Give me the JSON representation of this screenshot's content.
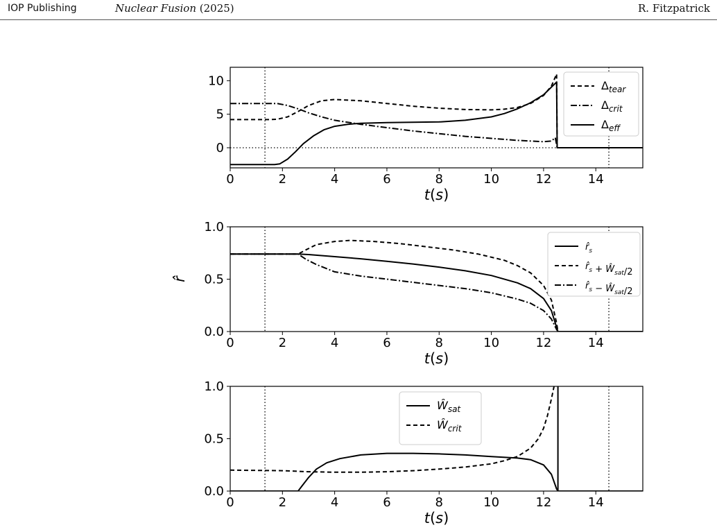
{
  "header": {
    "publisher": "IOP Publishing",
    "journal_name": "Nuclear Fusion",
    "journal_year": "(2025)",
    "author": "R. Fitzpatrick"
  },
  "chart_data": [
    {
      "type": "line",
      "xlabel": "t(s)",
      "ylabel": "",
      "xlim": [
        0,
        15.8
      ],
      "ylim": [
        -3,
        12
      ],
      "xticks": [
        0,
        2,
        4,
        6,
        8,
        10,
        12,
        14
      ],
      "yticks": [
        0,
        5,
        10
      ],
      "vlines": [
        1.33,
        14.5
      ],
      "hline": 0,
      "legend_position": "top-right",
      "series": [
        {
          "name": "Δtear",
          "style": "dashed",
          "points": [
            [
              0,
              4.2
            ],
            [
              1.5,
              4.2
            ],
            [
              1.8,
              4.25
            ],
            [
              2.2,
              4.6
            ],
            [
              2.6,
              5.4
            ],
            [
              3.0,
              6.3
            ],
            [
              3.5,
              7.0
            ],
            [
              4.0,
              7.2
            ],
            [
              5.0,
              7.0
            ],
            [
              6.0,
              6.6
            ],
            [
              7.0,
              6.2
            ],
            [
              8.0,
              5.9
            ],
            [
              9.0,
              5.7
            ],
            [
              10.0,
              5.65
            ],
            [
              10.5,
              5.75
            ],
            [
              11.0,
              6.0
            ],
            [
              11.5,
              6.6
            ],
            [
              12.0,
              7.8
            ],
            [
              12.3,
              9.2
            ],
            [
              12.5,
              11.0
            ],
            [
              12.52,
              0
            ],
            [
              15.8,
              0
            ]
          ]
        },
        {
          "name": "Δcrit",
          "style": "dashdot",
          "points": [
            [
              0,
              6.6
            ],
            [
              1.8,
              6.6
            ],
            [
              2.2,
              6.3
            ],
            [
              2.6,
              5.8
            ],
            [
              3.0,
              5.2
            ],
            [
              3.5,
              4.6
            ],
            [
              4.0,
              4.1
            ],
            [
              5.0,
              3.5
            ],
            [
              6.0,
              3.0
            ],
            [
              7.0,
              2.5
            ],
            [
              8.0,
              2.1
            ],
            [
              9.0,
              1.7
            ],
            [
              10.0,
              1.4
            ],
            [
              11.0,
              1.1
            ],
            [
              12.0,
              0.9
            ],
            [
              12.3,
              1.0
            ],
            [
              12.45,
              1.5
            ],
            [
              12.52,
              0
            ],
            [
              15.8,
              0
            ]
          ]
        },
        {
          "name": "Δeff",
          "style": "solid",
          "points": [
            [
              0,
              -2.5
            ],
            [
              1.7,
              -2.5
            ],
            [
              1.9,
              -2.4
            ],
            [
              2.2,
              -1.7
            ],
            [
              2.5,
              -0.6
            ],
            [
              2.8,
              0.6
            ],
            [
              3.2,
              1.8
            ],
            [
              3.6,
              2.7
            ],
            [
              4.0,
              3.2
            ],
            [
              4.5,
              3.5
            ],
            [
              5.0,
              3.65
            ],
            [
              6.0,
              3.75
            ],
            [
              7.0,
              3.8
            ],
            [
              8.0,
              3.85
            ],
            [
              9.0,
              4.1
            ],
            [
              10.0,
              4.6
            ],
            [
              10.5,
              5.1
            ],
            [
              11.0,
              5.8
            ],
            [
              11.5,
              6.7
            ],
            [
              12.0,
              7.9
            ],
            [
              12.5,
              9.8
            ],
            [
              12.52,
              0
            ],
            [
              15.8,
              0
            ]
          ]
        }
      ]
    },
    {
      "type": "line",
      "xlabel": "t(s)",
      "ylabel": "r̂",
      "xlim": [
        0,
        15.8
      ],
      "ylim": [
        0,
        1.0
      ],
      "xticks": [
        0,
        2,
        4,
        6,
        8,
        10,
        12,
        14
      ],
      "yticks": [
        0.0,
        0.5,
        1.0
      ],
      "vlines": [
        1.33,
        14.5
      ],
      "legend_position": "top-right",
      "series": [
        {
          "name": "r̂s",
          "style": "solid",
          "points": [
            [
              0,
              0.74
            ],
            [
              2.6,
              0.74
            ],
            [
              3.0,
              0.735
            ],
            [
              4.0,
              0.715
            ],
            [
              5.0,
              0.695
            ],
            [
              6.0,
              0.67
            ],
            [
              7.0,
              0.645
            ],
            [
              8.0,
              0.615
            ],
            [
              9.0,
              0.58
            ],
            [
              10.0,
              0.535
            ],
            [
              11.0,
              0.465
            ],
            [
              11.5,
              0.41
            ],
            [
              12.0,
              0.315
            ],
            [
              12.3,
              0.2
            ],
            [
              12.5,
              0.04
            ],
            [
              12.55,
              0
            ],
            [
              15.8,
              0
            ]
          ]
        },
        {
          "name": "r̂s + Ŵsat/2",
          "style": "dashed",
          "points": [
            [
              0,
              0.74
            ],
            [
              2.6,
              0.74
            ],
            [
              2.9,
              0.78
            ],
            [
              3.3,
              0.83
            ],
            [
              4.0,
              0.86
            ],
            [
              4.6,
              0.87
            ],
            [
              5.5,
              0.86
            ],
            [
              6.5,
              0.84
            ],
            [
              7.5,
              0.81
            ],
            [
              8.5,
              0.78
            ],
            [
              9.5,
              0.74
            ],
            [
              10.5,
              0.68
            ],
            [
              11.0,
              0.63
            ],
            [
              11.5,
              0.56
            ],
            [
              12.0,
              0.44
            ],
            [
              12.3,
              0.3
            ],
            [
              12.5,
              0.08
            ],
            [
              12.55,
              0
            ],
            [
              15.8,
              0
            ]
          ]
        },
        {
          "name": "r̂s − Ŵsat/2",
          "style": "dashdot",
          "points": [
            [
              0,
              0.74
            ],
            [
              2.6,
              0.74
            ],
            [
              2.9,
              0.69
            ],
            [
              3.3,
              0.64
            ],
            [
              4.0,
              0.57
            ],
            [
              5.0,
              0.53
            ],
            [
              6.0,
              0.5
            ],
            [
              7.0,
              0.47
            ],
            [
              8.0,
              0.44
            ],
            [
              9.0,
              0.41
            ],
            [
              10.0,
              0.37
            ],
            [
              11.0,
              0.31
            ],
            [
              11.5,
              0.27
            ],
            [
              12.0,
              0.2
            ],
            [
              12.3,
              0.12
            ],
            [
              12.5,
              0.02
            ],
            [
              12.55,
              0
            ],
            [
              15.8,
              0
            ]
          ]
        }
      ]
    },
    {
      "type": "line",
      "xlabel": "t(s)",
      "ylabel": "",
      "xlim": [
        0,
        15.8
      ],
      "ylim": [
        0,
        1.0
      ],
      "xticks": [
        0,
        2,
        4,
        6,
        8,
        10,
        12,
        14
      ],
      "yticks": [
        0.0,
        0.5,
        1.0
      ],
      "vlines": [
        1.33,
        14.5
      ],
      "legend_position": "top-center",
      "series": [
        {
          "name": "Ŵsat",
          "style": "solid",
          "points": [
            [
              0,
              0
            ],
            [
              2.6,
              0
            ],
            [
              2.75,
              0.05
            ],
            [
              3.0,
              0.13
            ],
            [
              3.3,
              0.21
            ],
            [
              3.7,
              0.27
            ],
            [
              4.2,
              0.31
            ],
            [
              5.0,
              0.345
            ],
            [
              6.0,
              0.36
            ],
            [
              7.0,
              0.36
            ],
            [
              8.0,
              0.355
            ],
            [
              9.0,
              0.345
            ],
            [
              10.0,
              0.33
            ],
            [
              11.0,
              0.315
            ],
            [
              11.5,
              0.3
            ],
            [
              12.0,
              0.25
            ],
            [
              12.3,
              0.16
            ],
            [
              12.5,
              0.02
            ],
            [
              12.55,
              0
            ],
            [
              15.8,
              0
            ]
          ]
        },
        {
          "name": "Ŵcrit",
          "style": "dashed",
          "points": [
            [
              0,
              0.2
            ],
            [
              2.0,
              0.195
            ],
            [
              3.0,
              0.185
            ],
            [
              4.0,
              0.18
            ],
            [
              5.0,
              0.18
            ],
            [
              6.0,
              0.185
            ],
            [
              7.0,
              0.195
            ],
            [
              8.0,
              0.21
            ],
            [
              9.0,
              0.23
            ],
            [
              10.0,
              0.26
            ],
            [
              10.5,
              0.29
            ],
            [
              11.0,
              0.33
            ],
            [
              11.5,
              0.41
            ],
            [
              11.8,
              0.5
            ],
            [
              12.0,
              0.6
            ],
            [
              12.15,
              0.72
            ],
            [
              12.3,
              0.88
            ],
            [
              12.4,
              1.0
            ]
          ]
        },
        {
          "name": "",
          "style": "solid",
          "points": [
            [
              12.55,
              0
            ],
            [
              12.55,
              1.0
            ]
          ]
        }
      ]
    }
  ]
}
